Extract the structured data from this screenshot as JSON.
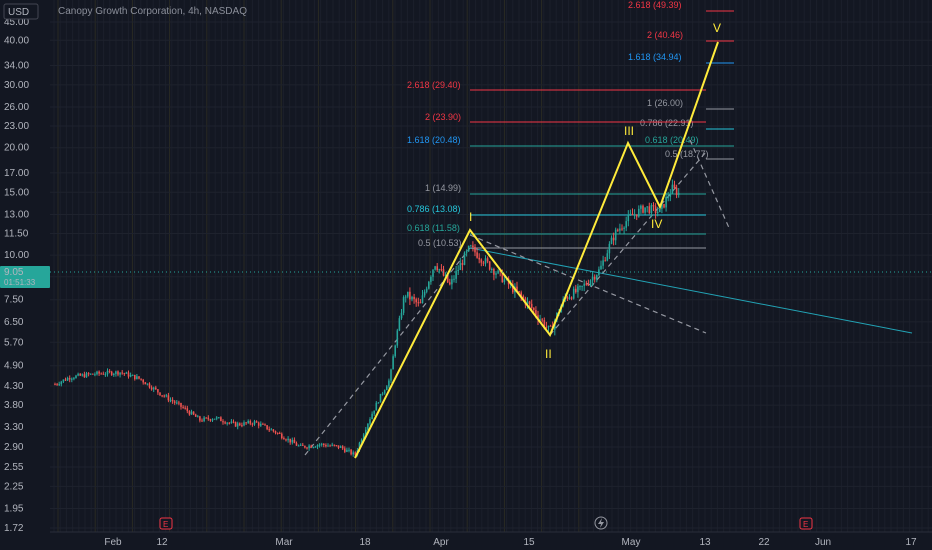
{
  "header": {
    "currency": "USD",
    "symbol_title": "Canopy Growth Corporation, 4h, NASDAQ"
  },
  "chart_data": {
    "type": "candlestick",
    "price_axis": {
      "scale": "log",
      "ticks": [
        "45.00",
        "40.00",
        "34.00",
        "30.00",
        "26.00",
        "23.00",
        "20.00",
        "17.00",
        "15.00",
        "13.00",
        "11.50",
        "10.00",
        "8.70",
        "7.50",
        "6.50",
        "5.70",
        "4.90",
        "4.30",
        "3.80",
        "3.30",
        "2.90",
        "2.55",
        "2.25",
        "1.95",
        "1.72"
      ],
      "last_price": "9.05",
      "countdown": "01:51:33"
    },
    "time_axis": {
      "ticks": [
        "Feb",
        "12",
        "Mar",
        "18",
        "Apr",
        "15",
        "May",
        "13",
        "22",
        "Jun",
        "17"
      ]
    },
    "earnings_markers": [
      "E",
      "E"
    ],
    "fib_levels": [
      {
        "label": "2.618 (49.39)",
        "price": 49.39,
        "color": "#f23645"
      },
      {
        "label": "2 (40.46)",
        "price": 40.46,
        "color": "#f23645"
      },
      {
        "label": "1.618 (34.94)",
        "price": 34.94,
        "color": "#2196f3"
      },
      {
        "label": "2.618 (29.40)",
        "price": 29.4,
        "color": "#f23645"
      },
      {
        "label": "1 (26.00)",
        "price": 26.0,
        "color": "#9598a1"
      },
      {
        "label": "0.786 (22.91)",
        "price": 22.91,
        "color": "#26c6da"
      },
      {
        "label": "2 (23.90)",
        "price": 23.9,
        "color": "#f23645"
      },
      {
        "label": "0.618 (20.49)",
        "price": 20.49,
        "color": "#26a69a"
      },
      {
        "label": "1.618 (20.48)",
        "price": 20.48,
        "color": "#2196f3"
      },
      {
        "label": "0.5 (18.77)",
        "price": 18.77,
        "color": "#9598a1"
      },
      {
        "label": "1 (14.99)",
        "price": 14.99,
        "color": "#9598a1"
      },
      {
        "label": "0.786 (13.08)",
        "price": 13.08,
        "color": "#26c6da"
      },
      {
        "label": "0.618 (11.58)",
        "price": 11.58,
        "color": "#26a69a"
      },
      {
        "label": "0.5 (10.53)",
        "price": 10.53,
        "color": "#9598a1"
      }
    ],
    "waves": [
      {
        "label": "I",
        "price": 11.8
      },
      {
        "label": "II",
        "price": 6.0
      },
      {
        "label": "III",
        "price": 21.0
      },
      {
        "label": "IV",
        "price": 13.5
      },
      {
        "label": "V",
        "price": 40.0
      }
    ],
    "colors": {
      "up": "#26a69a",
      "down": "#ef5350",
      "wave": "#ffeb3b",
      "background": "#131722"
    }
  }
}
